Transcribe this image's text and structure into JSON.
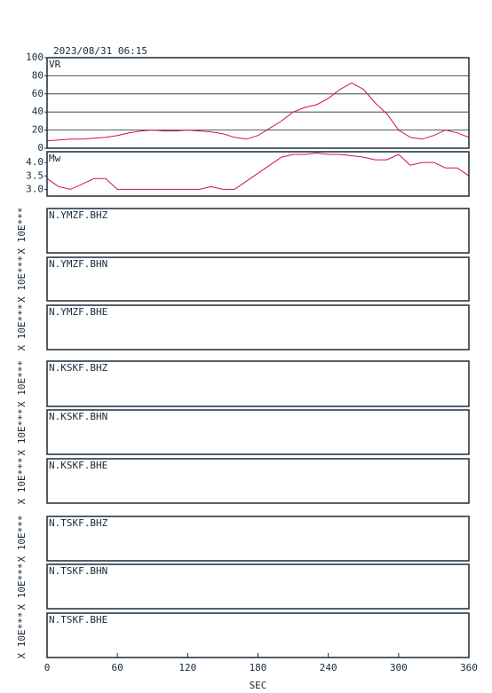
{
  "title": "2023/08/31 06:15",
  "chart_data": [
    {
      "type": "line",
      "title": "VR",
      "color": "#d0104c",
      "grid": true,
      "x": [
        0,
        10,
        20,
        30,
        40,
        50,
        60,
        70,
        80,
        90,
        100,
        110,
        120,
        130,
        140,
        150,
        160,
        170,
        180,
        190,
        200,
        210,
        220,
        230,
        240,
        250,
        260,
        270,
        280,
        290,
        300,
        310,
        320,
        330,
        340,
        350,
        360
      ],
      "values": [
        8,
        9,
        10,
        10,
        11,
        12,
        14,
        17,
        19,
        20,
        19,
        19,
        20,
        19,
        18,
        16,
        12,
        10,
        14,
        22,
        30,
        40,
        45,
        48,
        55,
        65,
        72,
        65,
        50,
        38,
        20,
        12,
        10,
        14,
        20,
        17,
        12
      ],
      "xlim": [
        0,
        360
      ],
      "ylim": [
        0,
        100
      ],
      "yticks": [
        0,
        20,
        40,
        60,
        80,
        100
      ]
    },
    {
      "type": "line",
      "title": "Mw",
      "color": "#d0104c",
      "grid": false,
      "x": [
        0,
        10,
        20,
        30,
        40,
        50,
        60,
        70,
        80,
        90,
        100,
        110,
        120,
        130,
        140,
        150,
        160,
        170,
        180,
        190,
        200,
        210,
        220,
        230,
        240,
        250,
        260,
        270,
        280,
        290,
        300,
        310,
        320,
        330,
        340,
        350,
        360
      ],
      "values": [
        3.4,
        3.1,
        3.0,
        3.2,
        3.4,
        3.4,
        3.0,
        3.0,
        3.0,
        3.0,
        3.0,
        3.0,
        3.0,
        3.0,
        3.1,
        3.0,
        3.0,
        3.3,
        3.6,
        3.9,
        4.2,
        4.3,
        4.3,
        4.35,
        4.3,
        4.3,
        4.25,
        4.2,
        4.1,
        4.1,
        4.3,
        3.9,
        4.0,
        4.0,
        3.8,
        3.8,
        3.5
      ],
      "xlim": [
        0,
        360
      ],
      "ylim": [
        2.75,
        4.4
      ],
      "yticks": [
        {
          "value": 3,
          "label": "3.0"
        },
        {
          "value": 3.5,
          "label": "3.5"
        },
        {
          "value": 4,
          "label": "4.0"
        }
      ]
    }
  ],
  "traces": [
    {
      "name": "N.YMZF.BHZ",
      "scale": "X 10E***"
    },
    {
      "name": "N.YMZF.BHN",
      "scale": "X 10E***"
    },
    {
      "name": "N.YMZF.BHE",
      "scale": "X 10E***"
    },
    {
      "name": "N.KSKF.BHZ",
      "scale": "X 10E***"
    },
    {
      "name": "N.KSKF.BHN",
      "scale": "X 10E***"
    },
    {
      "name": "N.KSKF.BHE",
      "scale": "X 10E***"
    },
    {
      "name": "N.TSKF.BHZ",
      "scale": "X 10E***"
    },
    {
      "name": "N.TSKF.BHN",
      "scale": "X 10E***"
    },
    {
      "name": "N.TSKF.BHE",
      "scale": "X 10E***"
    }
  ],
  "x_axis": {
    "label": "SEC",
    "xlim": [
      0,
      360
    ],
    "xticks": [
      0,
      60,
      120,
      180,
      240,
      300,
      360
    ]
  }
}
